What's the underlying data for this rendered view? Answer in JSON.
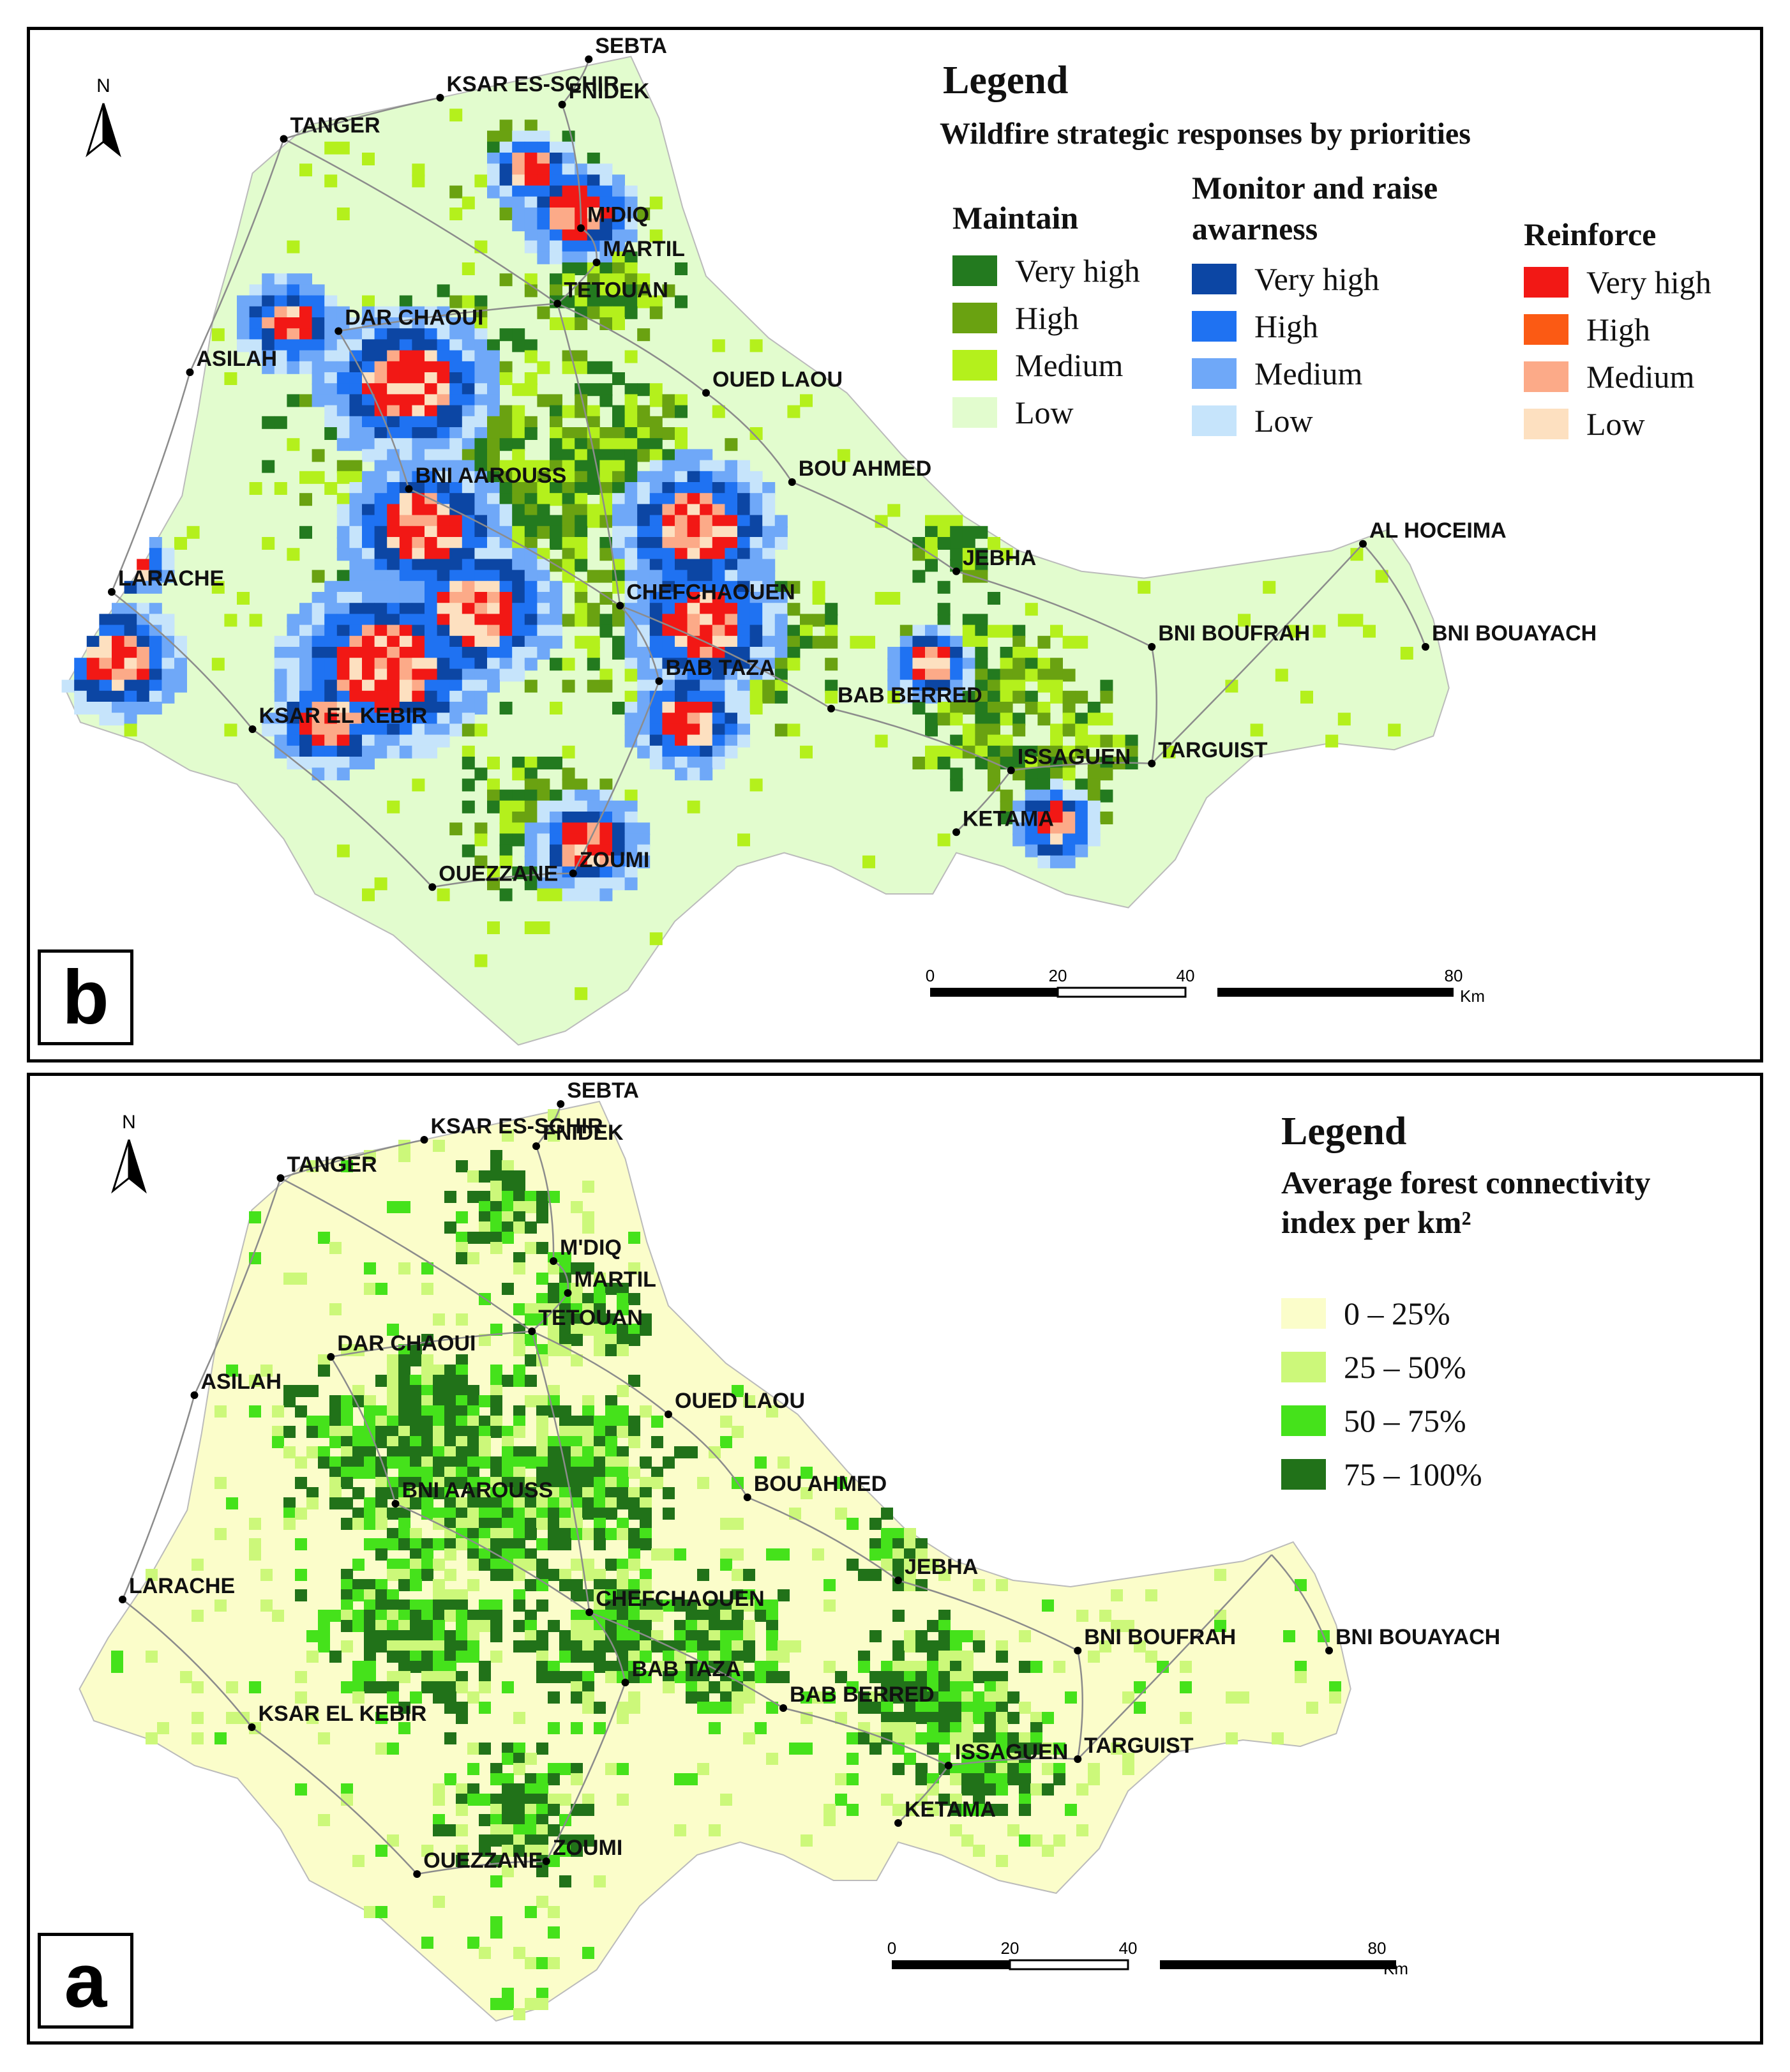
{
  "panels": [
    {
      "letter": "b",
      "legend": {
        "title": "Legend",
        "subtitle": "Wildfire strategic responses by priorities",
        "groups": [
          {
            "title": "Maintain",
            "items": [
              {
                "label": "Very high",
                "color": "#237a1f"
              },
              {
                "label": "High",
                "color": "#6aa211"
              },
              {
                "label": "Medium",
                "color": "#b4f01c"
              },
              {
                "label": "Low",
                "color": "#e2fcce"
              }
            ]
          },
          {
            "title": "Monitor and raise awarness",
            "items": [
              {
                "label": "Very high",
                "color": "#0c46a4"
              },
              {
                "label": "High",
                "color": "#1f72f2"
              },
              {
                "label": "Medium",
                "color": "#6fa8f8"
              },
              {
                "label": "Low",
                "color": "#c6e4fb"
              }
            ]
          },
          {
            "title": "Reinforce",
            "items": [
              {
                "label": "Very high",
                "color": "#f21815"
              },
              {
                "label": "High",
                "color": "#fb5a14"
              },
              {
                "label": "Medium",
                "color": "#fcaa88"
              },
              {
                "label": "Low",
                "color": "#fde0c0"
              }
            ]
          }
        ]
      },
      "scale": {
        "ticks": [
          "0",
          "20",
          "40",
          "80"
        ],
        "unit": "Km"
      },
      "north": "N"
    },
    {
      "letter": "a",
      "legend": {
        "title": "Legend",
        "subtitle_lines": [
          "Average forest connectivity",
          "index per km²"
        ],
        "items": [
          {
            "label": "0 – 25%",
            "color": "#fbfdca"
          },
          {
            "label": "25 – 50%",
            "color": "#ccf87a"
          },
          {
            "label": "50 – 75%",
            "color": "#45e21b"
          },
          {
            "label": "75 – 100%",
            "color": "#217219"
          }
        ]
      },
      "scale": {
        "ticks": [
          "0",
          "20",
          "40",
          "80"
        ],
        "unit": "Km"
      },
      "north": "N"
    }
  ],
  "cities": [
    "SEBTA",
    "KSAR ES-SGHIR",
    "FNIDEK",
    "TANGER",
    "M'DIQ",
    "MARTIL",
    "TETOUAN",
    "DAR CHAOUI",
    "ASILAH",
    "OUED LAOU",
    "BNI AAROUSS",
    "BOU AHMED",
    "AL HOCEIMA",
    "JEBHA",
    "LARACHE",
    "CHEFCHAOUEN",
    "BNI BOUFRAH",
    "BNI BOUAYACH",
    "BAB TAZA",
    "KSAR EL KEBIR",
    "BAB BERRED",
    "TARGUIST",
    "ISSAGUEN",
    "KETAMA",
    "ZOUMI",
    "OUEZZANE"
  ],
  "colors": {
    "map_b_base": "#e2fcce",
    "map_a_base": "#fbfdca",
    "road": "#8c8c8c"
  }
}
